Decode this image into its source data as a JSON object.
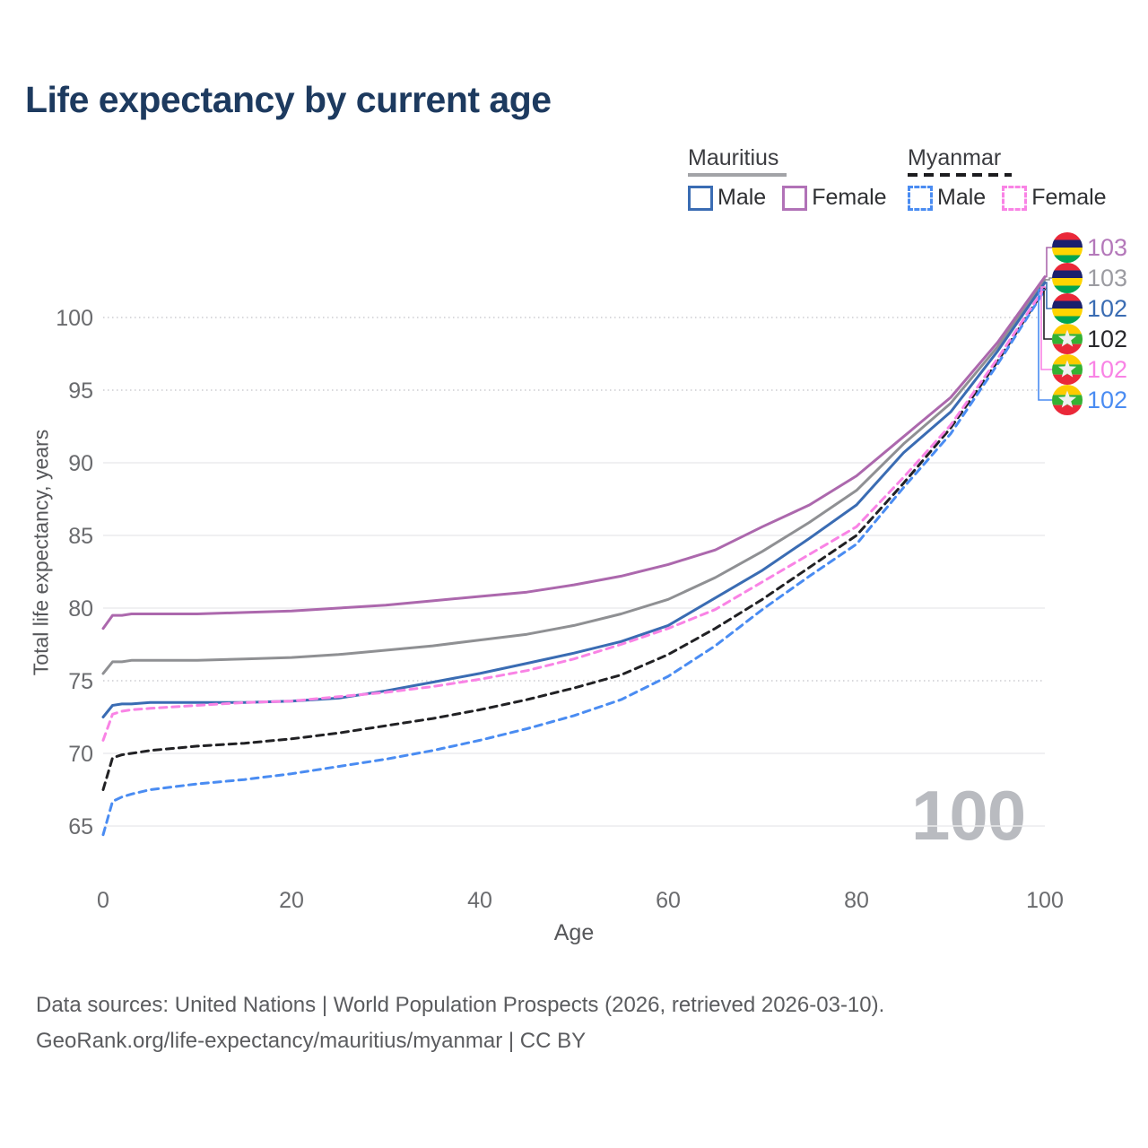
{
  "title": "Life expectancy by current age",
  "legend": {
    "groups": [
      {
        "name": "Mauritius",
        "items": [
          {
            "label": "Male"
          },
          {
            "label": "Female"
          }
        ]
      },
      {
        "name": "Myanmar",
        "items": [
          {
            "label": "Male"
          },
          {
            "label": "Female"
          }
        ]
      }
    ]
  },
  "chart_data": {
    "type": "line",
    "title": "Life expectancy by current age",
    "xlabel": "Age",
    "ylabel": "Total life expectancy, years",
    "x_ticks": [
      0,
      20,
      40,
      60,
      80,
      100
    ],
    "y_ticks": [
      65,
      70,
      75,
      80,
      85,
      90,
      95,
      100
    ],
    "xlim": [
      0,
      100
    ],
    "ylim": [
      63,
      104
    ],
    "grid": true,
    "legend_position": "top-right",
    "watermark": "100",
    "ages": [
      0,
      1,
      2,
      3,
      5,
      10,
      15,
      20,
      25,
      30,
      35,
      40,
      45,
      50,
      55,
      60,
      65,
      70,
      75,
      80,
      85,
      90,
      95,
      100
    ],
    "series": [
      {
        "id": "mauritius-all",
        "country": "Mauritius",
        "sex": "all",
        "line_style": "solid",
        "color": "#8f9093",
        "end_label": "103",
        "values": [
          75.5,
          76.3,
          76.3,
          76.4,
          76.4,
          76.4,
          76.5,
          76.6,
          76.8,
          77.1,
          77.4,
          77.8,
          78.2,
          78.8,
          79.6,
          80.6,
          82.1,
          83.9,
          85.9,
          88.1,
          91.3,
          94.1,
          98.0,
          102.6
        ]
      },
      {
        "id": "mauritius-male",
        "country": "Mauritius",
        "sex": "male",
        "line_style": "solid",
        "color": "#3a6cb3",
        "end_label": "102",
        "values": [
          72.5,
          73.3,
          73.4,
          73.4,
          73.5,
          73.5,
          73.5,
          73.6,
          73.8,
          74.3,
          74.9,
          75.5,
          76.2,
          76.9,
          77.7,
          78.8,
          80.7,
          82.6,
          84.8,
          87.1,
          90.7,
          93.5,
          97.7,
          102.4
        ]
      },
      {
        "id": "mauritius-female",
        "country": "Mauritius",
        "sex": "female",
        "line_style": "solid",
        "color": "#ac68ad",
        "end_label": "103",
        "values": [
          78.6,
          79.5,
          79.5,
          79.6,
          79.6,
          79.6,
          79.7,
          79.8,
          80.0,
          80.2,
          80.5,
          80.8,
          81.1,
          81.6,
          82.2,
          83.0,
          84.0,
          85.6,
          87.1,
          89.1,
          91.8,
          94.5,
          98.3,
          102.8
        ]
      },
      {
        "id": "myanmar-all",
        "country": "Myanmar",
        "sex": "all",
        "line_style": "dashed",
        "color": "#212124",
        "end_label": "102",
        "values": [
          67.5,
          69.7,
          69.9,
          70.0,
          70.2,
          70.5,
          70.7,
          71.0,
          71.4,
          71.9,
          72.4,
          73.0,
          73.7,
          74.5,
          75.4,
          76.8,
          78.6,
          80.6,
          82.8,
          85.0,
          88.6,
          92.4,
          97.0,
          102.0
        ]
      },
      {
        "id": "myanmar-male",
        "country": "Myanmar",
        "sex": "male",
        "line_style": "dashed",
        "color": "#4a8cf2",
        "end_label": "102",
        "values": [
          64.4,
          66.7,
          67.0,
          67.2,
          67.5,
          67.9,
          68.2,
          68.6,
          69.1,
          69.6,
          70.2,
          70.9,
          71.7,
          72.6,
          73.7,
          75.3,
          77.4,
          79.9,
          82.2,
          84.4,
          88.3,
          92.0,
          96.8,
          101.9
        ]
      },
      {
        "id": "myanmar-female",
        "country": "Myanmar",
        "sex": "female",
        "line_style": "dashed",
        "color": "#f983e5",
        "end_label": "102",
        "values": [
          70.9,
          72.7,
          72.9,
          73.0,
          73.1,
          73.3,
          73.5,
          73.6,
          73.9,
          74.2,
          74.6,
          75.1,
          75.7,
          76.5,
          77.5,
          78.6,
          79.9,
          81.8,
          83.7,
          85.6,
          89.0,
          92.6,
          97.2,
          102.1
        ]
      }
    ]
  },
  "footer": {
    "line1": "Data sources: United Nations | World Population Prospects (2026, retrieved 2026-03-10).",
    "line2": "GeoRank.org/life-expectancy/mauritius/myanmar | CC BY"
  }
}
